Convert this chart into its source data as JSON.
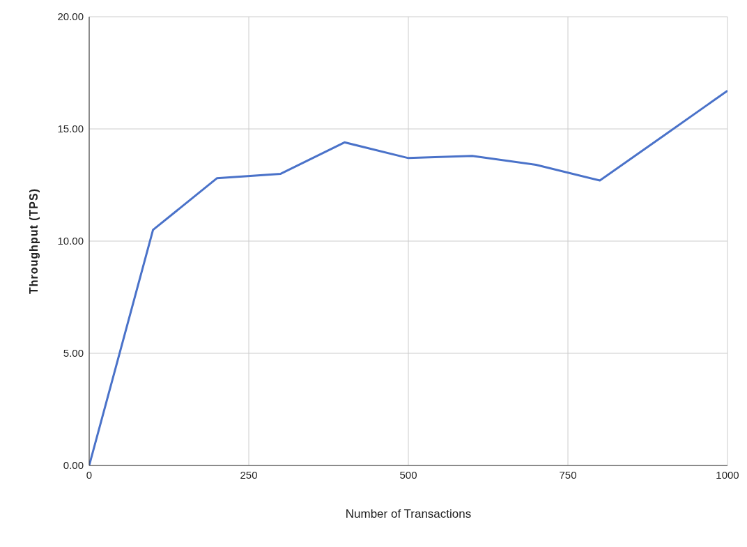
{
  "chart_data": {
    "type": "line",
    "xlabel": "Number of Transactions",
    "ylabel": "Throughput (TPS)",
    "x": [
      0,
      100,
      200,
      300,
      400,
      500,
      600,
      700,
      800,
      900,
      1000
    ],
    "series": [
      {
        "color": "#4a72c9",
        "values": [
          0,
          10.5,
          12.8,
          13.0,
          14.4,
          13.7,
          13.8,
          13.4,
          12.7,
          14.7,
          16.7
        ]
      }
    ],
    "xlim": [
      0,
      1000
    ],
    "xticks": [
      0,
      250,
      500,
      750,
      1000
    ],
    "ylim": [
      0,
      20
    ],
    "yticks": [
      {
        "value": 0,
        "label": "0.00"
      },
      {
        "value": 5,
        "label": "5.00"
      },
      {
        "value": 10,
        "label": "10.00"
      },
      {
        "value": 15,
        "label": "15.00"
      },
      {
        "value": 20,
        "label": "20.00"
      }
    ],
    "grid": true,
    "marker": "none",
    "line_style": "solid",
    "legend": false
  }
}
